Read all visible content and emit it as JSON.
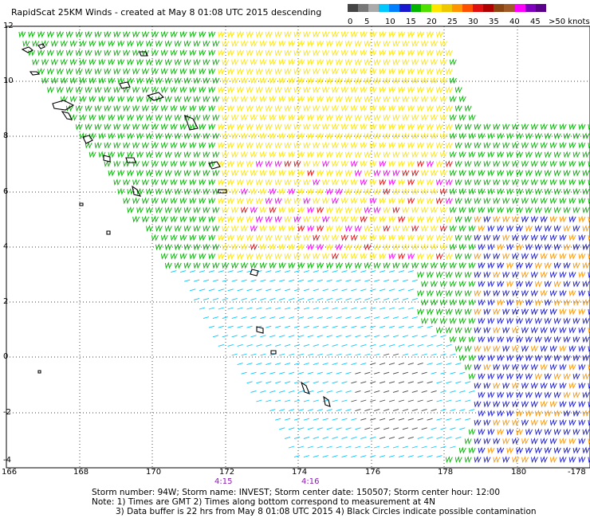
{
  "title": "RapidScat 25KM Winds - created at May  8 01:08 UTC 2015 descending",
  "legend": {
    "colors": [
      "#444444",
      "#777777",
      "#aaaaaa",
      "#00c8ff",
      "#0080ff",
      "#1818d0",
      "#00b400",
      "#50e000",
      "#ffe600",
      "#f0c800",
      "#ff9600",
      "#ff5000",
      "#e01010",
      "#b00000",
      "#8b4513",
      "#a05a28",
      "#ff00ff",
      "#8000c0",
      "#5a008a"
    ],
    "labels": [
      "0",
      "5",
      "10",
      "15",
      "20",
      "25",
      "30",
      "35",
      "40",
      "45",
      ">50 knots"
    ]
  },
  "lat_labels": [
    "12",
    "10",
    "8",
    "6",
    "4",
    "2",
    "0",
    "-2",
    "-4"
  ],
  "lon_labels": [
    "166",
    "168",
    "170",
    "172",
    "174",
    "176",
    "178",
    "180",
    "-178"
  ],
  "times": [
    "4:15",
    "4:16"
  ],
  "footer": {
    "line1": "Storm number: 94W;  Storm name: INVEST;  Storm center date: 150507;  Storm center hour: 12:00",
    "line2": "Note: 1) Times are GMT  2) Times along bottom correspond to measurement at 4N",
    "line3": "3) Data buffer is 22 hrs from May  8 01:08 UTC 2015  4) Black Circles indicate possible contamination"
  }
}
